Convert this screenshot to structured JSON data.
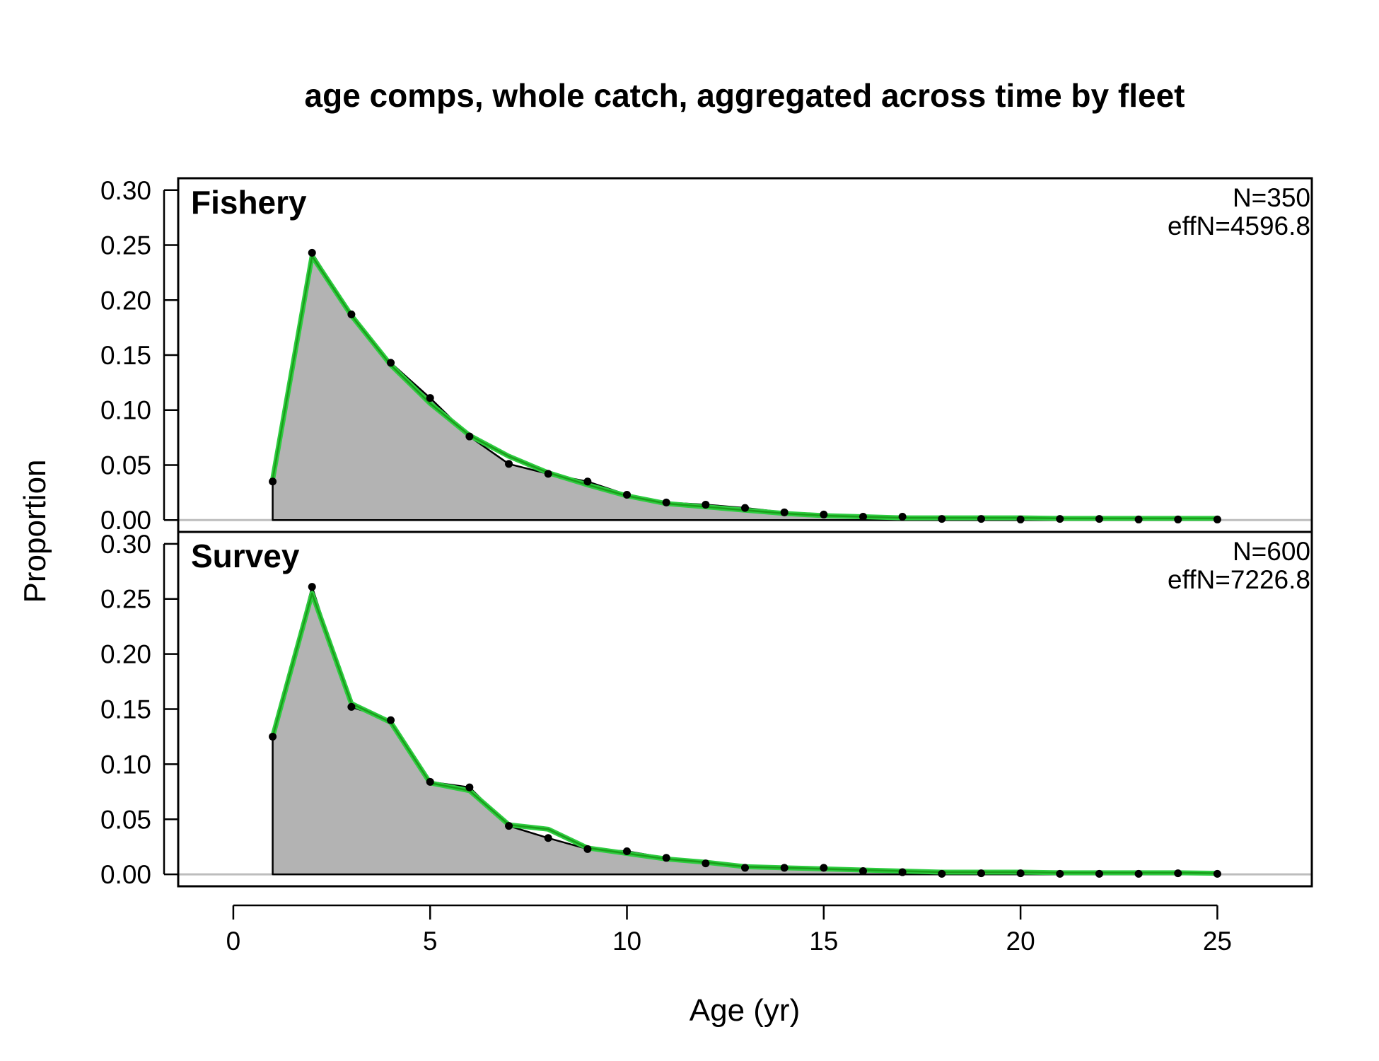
{
  "chart_data": {
    "type": "area",
    "title": "age comps, whole catch, aggregated across time by fleet",
    "xlabel": "Age (yr)",
    "ylabel": "Proportion",
    "xlim": [
      -1.4,
      27.4
    ],
    "ylim": [
      -0.0108,
      0.3108
    ],
    "x_ticks": [
      "0",
      "5",
      "10",
      "15",
      "20",
      "25"
    ],
    "y_ticks": [
      "0.00",
      "0.05",
      "0.10",
      "0.15",
      "0.20",
      "0.25",
      "0.30"
    ],
    "grid": false,
    "colors": {
      "observed_fill": "#b3b3b3",
      "observed_line": "#000000",
      "expected_line": "#2ecc40",
      "expected_line_dark": "#1a9e1a",
      "zero_line": "#bdbdbd"
    },
    "panels": [
      {
        "name": "Fishery",
        "n_label": "N=350",
        "effn_label": "effN=4596.8",
        "ages": [
          1,
          2,
          3,
          4,
          5,
          6,
          7,
          8,
          9,
          10,
          11,
          12,
          13,
          14,
          15,
          16,
          17,
          18,
          19,
          20,
          21,
          22,
          23,
          24,
          25
        ],
        "observed": [
          0.035,
          0.243,
          0.187,
          0.143,
          0.111,
          0.076,
          0.051,
          0.042,
          0.035,
          0.023,
          0.016,
          0.014,
          0.011,
          0.007,
          0.005,
          0.003,
          0.003,
          0.001,
          0.001,
          0.0005,
          0.001,
          0.001,
          0.0005,
          0.0005,
          0.0005
        ],
        "expected": [
          0.037,
          0.24,
          0.186,
          0.141,
          0.106,
          0.077,
          0.058,
          0.043,
          0.032,
          0.022,
          0.015,
          0.012,
          0.009,
          0.006,
          0.004,
          0.003,
          0.002,
          0.002,
          0.002,
          0.002,
          0.0015,
          0.0015,
          0.0015,
          0.0015,
          0.0015
        ]
      },
      {
        "name": "Survey",
        "n_label": "N=600",
        "effn_label": "effN=7226.8",
        "ages": [
          1,
          2,
          3,
          4,
          5,
          6,
          7,
          8,
          9,
          10,
          11,
          12,
          13,
          14,
          15,
          16,
          17,
          18,
          19,
          20,
          21,
          22,
          23,
          24,
          25
        ],
        "observed": [
          0.125,
          0.261,
          0.152,
          0.14,
          0.084,
          0.079,
          0.044,
          0.033,
          0.023,
          0.021,
          0.015,
          0.01,
          0.006,
          0.006,
          0.006,
          0.003,
          0.002,
          0.0005,
          0.001,
          0.001,
          0.0005,
          0.0005,
          0.0005,
          0.001,
          0.0005
        ],
        "expected": [
          0.125,
          0.255,
          0.155,
          0.138,
          0.083,
          0.076,
          0.045,
          0.041,
          0.024,
          0.019,
          0.014,
          0.011,
          0.007,
          0.006,
          0.005,
          0.004,
          0.003,
          0.002,
          0.002,
          0.002,
          0.0015,
          0.0015,
          0.0015,
          0.0015,
          0.001
        ]
      }
    ]
  }
}
